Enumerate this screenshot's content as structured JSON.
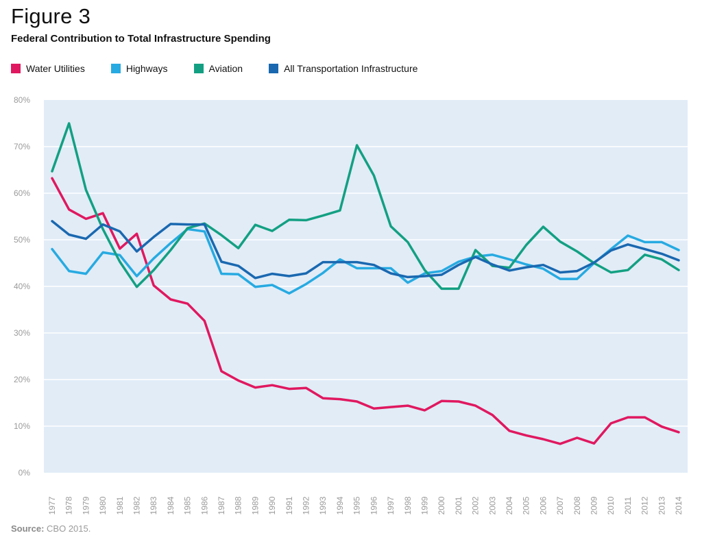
{
  "figure_label": "Figure 3",
  "source_label": "Source:",
  "source_text": "CBO 2015.",
  "chart_data": {
    "type": "line",
    "title": "Federal Contribution to Total Infrastructure Spending",
    "xlabel": "",
    "ylabel": "",
    "ylim": [
      0,
      80
    ],
    "y_ticks": [
      "0%",
      "10%",
      "20%",
      "30%",
      "40%",
      "50%",
      "60%",
      "70%",
      "80%"
    ],
    "grid": true,
    "legend_position": "top",
    "categories": [
      "1977",
      "1978",
      "1979",
      "1980",
      "1981",
      "1982",
      "1983",
      "1984",
      "1985",
      "1986",
      "1987",
      "1988",
      "1989",
      "1990",
      "1991",
      "1992",
      "1993",
      "1994",
      "1995",
      "1996",
      "1997",
      "1998",
      "1999",
      "2000",
      "2001",
      "2002",
      "2003",
      "2004",
      "2005",
      "2006",
      "2007",
      "2008",
      "2009",
      "2010",
      "2011",
      "2012",
      "2013",
      "2014"
    ],
    "series": [
      {
        "name": "Water Utilities",
        "color": "#e0185f",
        "values": [
          63.2,
          56.5,
          54.5,
          55.7,
          48.1,
          51.3,
          40.2,
          37.2,
          36.3,
          32.6,
          21.8,
          19.8,
          18.3,
          18.8,
          18.0,
          18.2,
          16.0,
          15.8,
          15.3,
          13.8,
          14.1,
          14.4,
          13.4,
          15.4,
          15.3,
          14.4,
          12.4,
          9.0,
          8.0,
          7.2,
          6.2,
          7.5,
          6.3,
          10.6,
          11.9,
          11.9,
          9.9,
          8.7
        ]
      },
      {
        "name": "Highways",
        "color": "#27aae1",
        "values": [
          48.0,
          43.3,
          42.7,
          47.3,
          46.7,
          42.2,
          46.0,
          49.3,
          52.3,
          51.8,
          42.7,
          42.6,
          39.9,
          40.3,
          38.5,
          40.5,
          42.9,
          45.8,
          43.9,
          43.9,
          43.9,
          40.8,
          42.8,
          43.3,
          45.3,
          46.4,
          46.8,
          45.8,
          44.7,
          43.8,
          41.6,
          41.6,
          45.0,
          48.0,
          50.9,
          49.5,
          49.5,
          47.8
        ]
      },
      {
        "name": "Aviation",
        "color": "#13a082",
        "values": [
          64.7,
          75.0,
          60.7,
          52.3,
          45.3,
          39.9,
          43.5,
          47.8,
          52.5,
          53.5,
          51.0,
          48.2,
          53.2,
          51.9,
          54.3,
          54.2,
          55.2,
          56.3,
          70.3,
          63.8,
          52.9,
          49.5,
          43.5,
          39.5,
          39.5,
          47.8,
          44.4,
          44.0,
          48.9,
          52.8,
          49.6,
          47.5,
          45.0,
          43.0,
          43.5,
          46.8,
          45.8,
          43.5
        ]
      },
      {
        "name": "All Transportation Infrastructure",
        "color": "#1a68b0",
        "values": [
          54.0,
          51.1,
          50.2,
          53.3,
          51.8,
          47.5,
          50.6,
          53.4,
          53.3,
          53.3,
          45.3,
          44.4,
          41.8,
          42.7,
          42.2,
          42.8,
          45.2,
          45.2,
          45.2,
          44.6,
          42.8,
          42.0,
          42.2,
          42.5,
          44.6,
          46.3,
          44.7,
          43.4,
          44.1,
          44.6,
          43.0,
          43.3,
          45.1,
          47.7,
          49.0,
          48.0,
          47.0,
          45.6
        ]
      }
    ]
  }
}
